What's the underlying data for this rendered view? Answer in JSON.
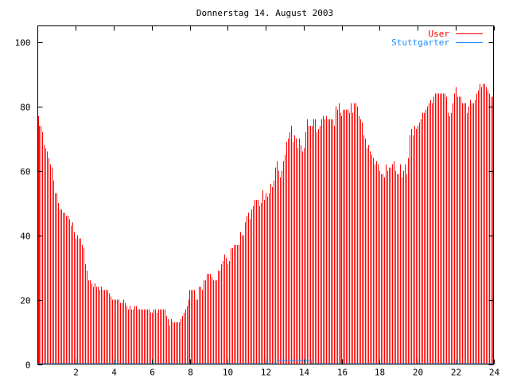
{
  "chart_data": {
    "type": "bar",
    "title": "Donnerstag 14. August 2003",
    "xlabel": "",
    "ylabel": "",
    "xlim": [
      0,
      24
    ],
    "ylim": [
      0,
      105
    ],
    "x_step_hours": 0.08333333,
    "x_ticks": [
      2,
      4,
      6,
      8,
      10,
      12,
      14,
      16,
      18,
      20,
      22,
      24
    ],
    "y_ticks": [
      0,
      20,
      40,
      60,
      80,
      100
    ],
    "grid": false,
    "legend_position": "top-right",
    "series": [
      {
        "name": "User",
        "style": "impulses",
        "color": "#ff0000",
        "values": [
          77,
          74,
          74,
          72,
          68,
          67,
          66,
          64,
          62,
          61,
          57,
          53,
          53,
          50,
          48,
          48,
          47,
          47,
          46,
          46,
          45,
          43,
          44,
          41,
          39,
          40,
          39,
          39,
          37,
          36,
          31,
          29,
          26,
          26,
          25,
          24,
          25,
          24,
          24,
          23,
          24,
          23,
          23,
          23,
          23,
          22,
          21,
          20,
          20,
          20,
          20,
          20,
          19,
          19,
          20,
          19,
          18,
          17,
          18,
          17,
          17,
          18,
          18,
          17,
          17,
          17,
          17,
          17,
          17,
          17,
          17,
          16,
          16,
          17,
          17,
          16,
          17,
          17,
          17,
          17,
          17,
          15,
          14,
          12,
          14,
          13,
          13,
          13,
          13,
          13,
          14,
          15,
          16,
          17,
          18,
          20,
          23,
          23,
          23,
          23,
          20,
          20,
          24,
          24,
          23,
          26,
          26,
          28,
          28,
          28,
          27,
          26,
          26,
          26,
          29,
          29,
          31,
          32,
          34,
          33,
          31,
          32,
          36,
          36,
          37,
          37,
          37,
          37,
          41,
          40,
          40,
          44,
          46,
          47,
          45,
          48,
          49,
          51,
          51,
          51,
          49,
          50,
          54,
          51,
          53,
          52,
          53,
          56,
          55,
          57,
          61,
          63,
          60,
          58,
          60,
          63,
          65,
          69,
          70,
          72,
          74,
          69,
          71,
          70,
          67,
          70,
          68,
          66,
          67,
          72,
          76,
          74,
          74,
          74,
          76,
          76,
          72,
          73,
          74,
          76,
          77,
          76,
          77,
          76,
          76,
          76,
          76,
          74,
          80,
          79,
          81,
          78,
          77,
          79,
          79,
          79,
          79,
          78,
          81,
          78,
          81,
          81,
          80,
          77,
          76,
          75,
          71,
          70,
          67,
          68,
          66,
          65,
          64,
          62,
          63,
          62,
          60,
          59,
          59,
          58,
          62,
          60,
          61,
          61,
          62,
          63,
          60,
          59,
          59,
          62,
          58,
          60,
          62,
          59,
          64,
          71,
          73,
          71,
          74,
          73,
          74,
          75,
          76,
          78,
          78,
          79,
          80,
          81,
          82,
          81,
          83,
          84,
          84,
          84,
          84,
          84,
          84,
          84,
          83,
          78,
          77,
          78,
          81,
          84,
          86,
          83,
          83,
          83,
          81,
          81,
          81,
          78,
          80,
          82,
          81,
          81,
          82,
          84,
          85,
          87,
          86,
          87,
          87,
          86,
          85,
          84,
          83,
          83
        ]
      },
      {
        "name": "Stuttgarter",
        "style": "lines",
        "color": "#1a8cff",
        "points": [
          [
            0,
            0
          ],
          [
            12.6,
            0
          ],
          [
            12.6,
            1
          ],
          [
            14.4,
            1
          ],
          [
            14.4,
            0
          ],
          [
            24,
            0
          ]
        ]
      }
    ]
  }
}
